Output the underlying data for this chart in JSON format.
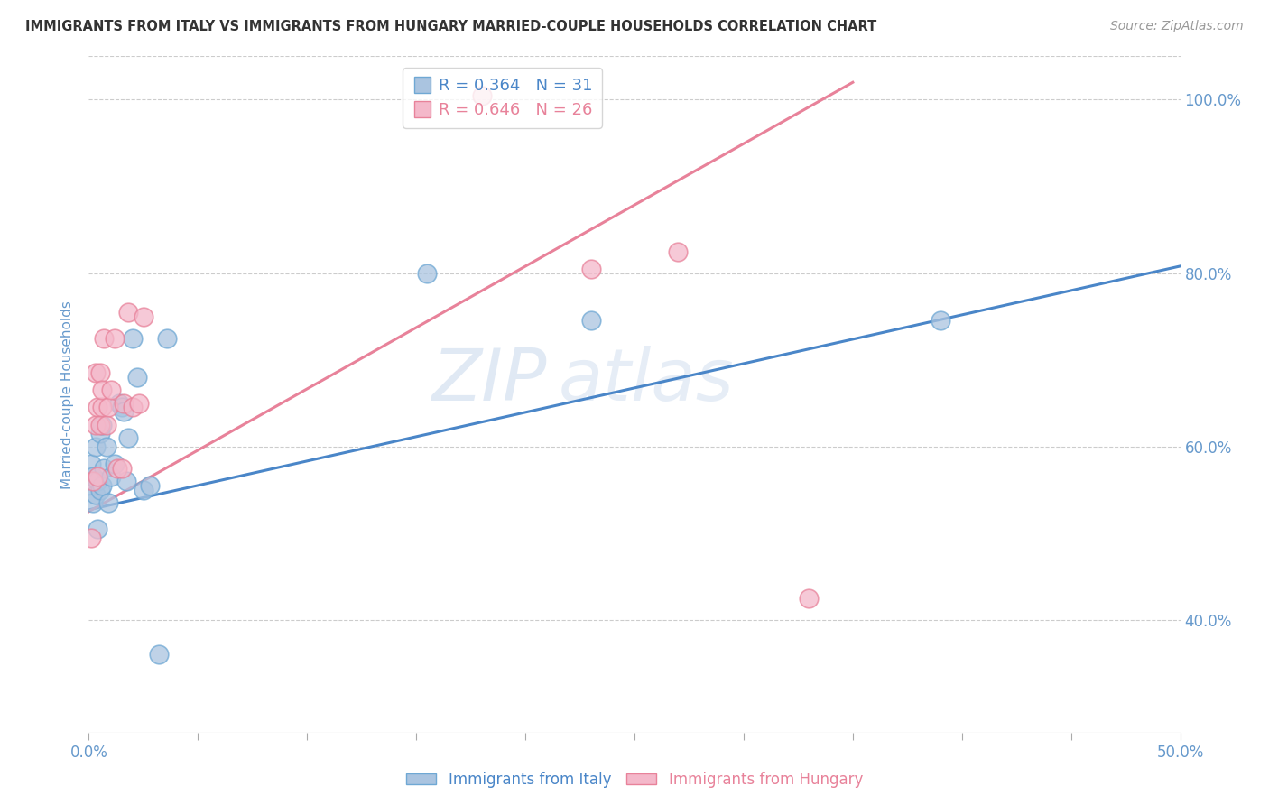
{
  "title": "IMMIGRANTS FROM ITALY VS IMMIGRANTS FROM HUNGARY MARRIED-COUPLE HOUSEHOLDS CORRELATION CHART",
  "source": "Source: ZipAtlas.com",
  "ylabel": "Married-couple Households",
  "x_min": 0.0,
  "x_max": 0.5,
  "y_min": 0.27,
  "y_max": 1.05,
  "x_ticks": [
    0.0,
    0.05,
    0.1,
    0.15,
    0.2,
    0.25,
    0.3,
    0.35,
    0.4,
    0.45,
    0.5
  ],
  "x_tick_labels_show": [
    "0.0%",
    "",
    "",
    "",
    "",
    "",
    "",
    "",
    "",
    "",
    "50.0%"
  ],
  "y_ticks": [
    0.4,
    0.6,
    0.8,
    1.0
  ],
  "y_tick_labels": [
    "40.0%",
    "60.0%",
    "80.0%",
    "100.0%"
  ],
  "italy_color": "#aac4e0",
  "italy_color_edge": "#6fa8d4",
  "hungary_color": "#f4b8ca",
  "hungary_color_edge": "#e8829a",
  "italy_line_color": "#4a86c8",
  "hungary_line_color": "#e8829a",
  "italy_R": "0.364",
  "italy_N": "31",
  "hungary_R": "0.646",
  "hungary_N": "26",
  "legend_label_italy": "Immigrants from Italy",
  "legend_label_hungary": "Immigrants from Hungary",
  "watermark_zip": "ZIP",
  "watermark_atlas": "atlas",
  "italy_scatter_x": [
    0.001,
    0.001,
    0.002,
    0.002,
    0.003,
    0.003,
    0.004,
    0.004,
    0.005,
    0.005,
    0.006,
    0.006,
    0.007,
    0.008,
    0.009,
    0.01,
    0.012,
    0.014,
    0.015,
    0.016,
    0.017,
    0.018,
    0.02,
    0.022,
    0.025,
    0.028,
    0.032,
    0.036,
    0.155,
    0.23,
    0.39
  ],
  "italy_scatter_y": [
    0.555,
    0.58,
    0.535,
    0.565,
    0.545,
    0.6,
    0.56,
    0.505,
    0.55,
    0.615,
    0.555,
    0.625,
    0.575,
    0.6,
    0.535,
    0.565,
    0.58,
    0.65,
    0.645,
    0.64,
    0.56,
    0.61,
    0.725,
    0.68,
    0.55,
    0.555,
    0.36,
    0.725,
    0.8,
    0.745,
    0.745
  ],
  "italy_line_x": [
    0.0,
    0.5
  ],
  "italy_line_y": [
    0.527,
    0.808
  ],
  "hungary_scatter_x": [
    0.001,
    0.002,
    0.003,
    0.003,
    0.004,
    0.004,
    0.005,
    0.005,
    0.006,
    0.006,
    0.007,
    0.008,
    0.009,
    0.01,
    0.012,
    0.013,
    0.015,
    0.016,
    0.018,
    0.02,
    0.023,
    0.025,
    0.18,
    0.23,
    0.27,
    0.33
  ],
  "hungary_scatter_y": [
    0.495,
    0.56,
    0.685,
    0.625,
    0.645,
    0.565,
    0.625,
    0.685,
    0.645,
    0.665,
    0.725,
    0.625,
    0.645,
    0.665,
    0.725,
    0.575,
    0.575,
    0.65,
    0.755,
    0.645,
    0.65,
    0.75,
    1.005,
    0.805,
    0.825,
    0.425
  ],
  "hungary_line_x": [
    0.0,
    0.35
  ],
  "hungary_line_y": [
    0.525,
    1.02
  ],
  "background_color": "#ffffff",
  "grid_color": "#cccccc",
  "title_color": "#333333",
  "axis_label_color": "#6699cc",
  "tick_label_color": "#6699cc"
}
